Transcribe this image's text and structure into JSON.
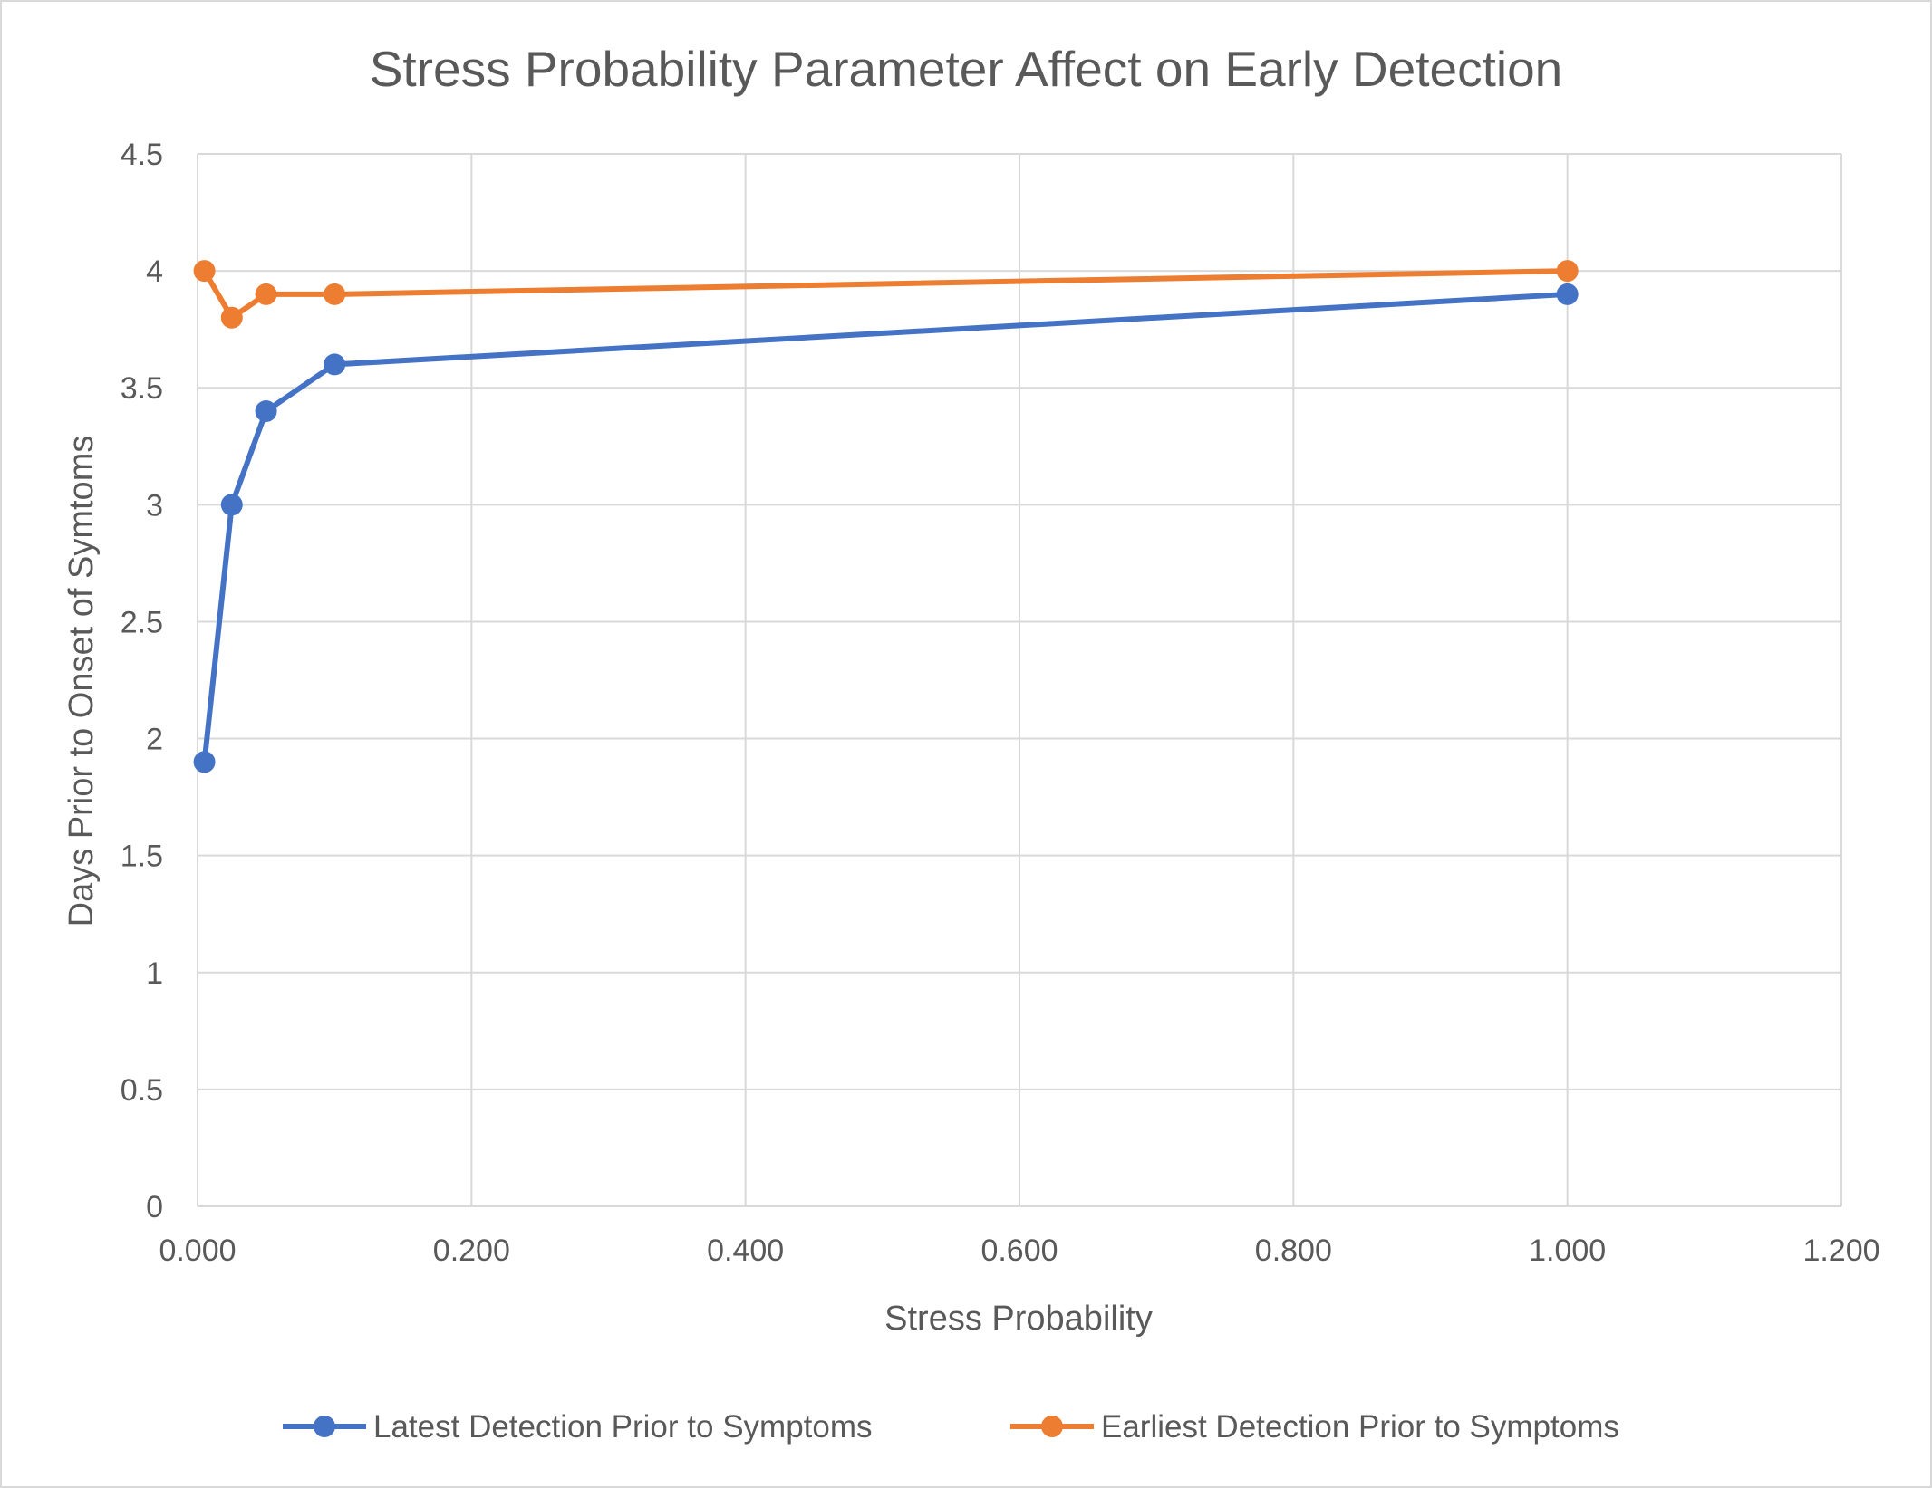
{
  "chart_data": {
    "type": "line",
    "title": "Stress Probability Parameter Affect on Early Detection",
    "xlabel": "Stress Probability",
    "ylabel": "Days Prior to Onset of Symtoms",
    "xlim": [
      0,
      1.2
    ],
    "ylim": [
      0,
      4.5
    ],
    "x_ticks": [
      "0.000",
      "0.200",
      "0.400",
      "0.600",
      "0.800",
      "1.000",
      "1.200"
    ],
    "x_tick_values": [
      0,
      0.2,
      0.4,
      0.6,
      0.8,
      1.0,
      1.2
    ],
    "y_ticks": [
      "0",
      "0.5",
      "1",
      "1.5",
      "2",
      "2.5",
      "3",
      "3.5",
      "4",
      "4.5"
    ],
    "y_tick_values": [
      0,
      0.5,
      1,
      1.5,
      2,
      2.5,
      3,
      3.5,
      4,
      4.5
    ],
    "grid": true,
    "legend_position": "bottom",
    "series": [
      {
        "name": "Latest Detection Prior to Symptoms",
        "color": "#4472C4",
        "points": [
          {
            "x": 0.005,
            "y": 1.9
          },
          {
            "x": 0.025,
            "y": 3.0
          },
          {
            "x": 0.05,
            "y": 3.4
          },
          {
            "x": 0.1,
            "y": 3.6
          },
          {
            "x": 1.0,
            "y": 3.9
          }
        ]
      },
      {
        "name": "Earliest Detection Prior to Symptoms",
        "color": "#ED7D31",
        "points": [
          {
            "x": 0.005,
            "y": 4.0
          },
          {
            "x": 0.025,
            "y": 3.8
          },
          {
            "x": 0.05,
            "y": 3.9
          },
          {
            "x": 0.1,
            "y": 3.9
          },
          {
            "x": 1.0,
            "y": 4.0
          }
        ]
      }
    ]
  },
  "colors": {
    "grid": "#d9d9d9",
    "text": "#595959",
    "frame": "#d9d9d9"
  }
}
